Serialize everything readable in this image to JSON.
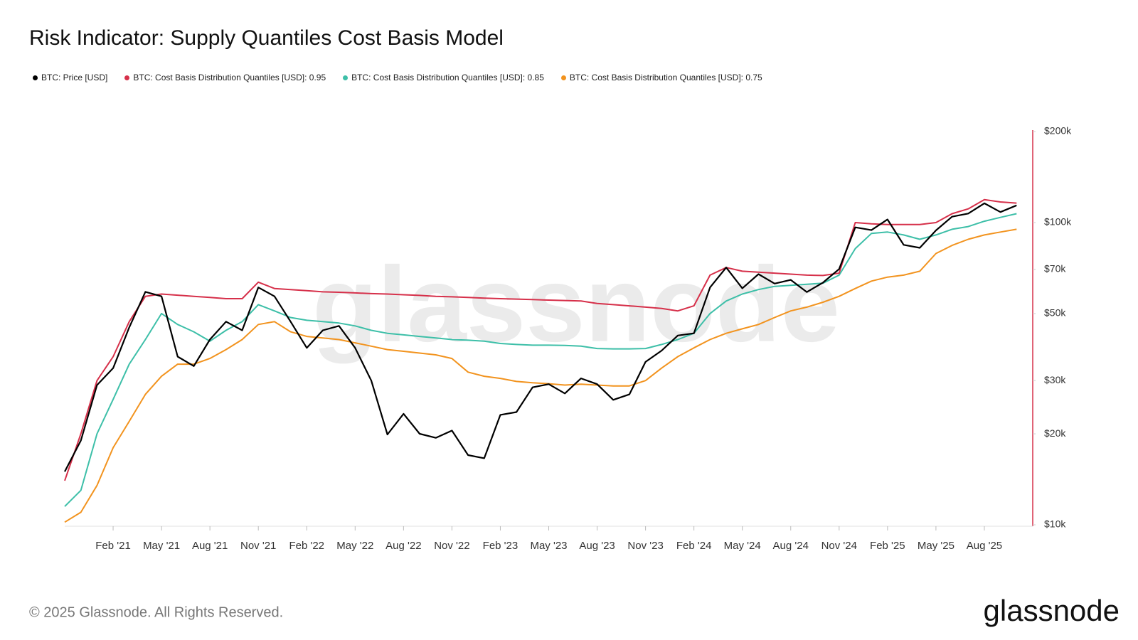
{
  "chart_data": {
    "type": "line",
    "title": "Risk Indicator: Supply Quantiles Cost Basis Model",
    "yscale": "log",
    "grid": false,
    "legend_position": "top-left",
    "categories": [
      null,
      null,
      null,
      "Feb '21",
      null,
      null,
      "May '21",
      null,
      null,
      "Aug '21",
      null,
      null,
      "Nov '21",
      null,
      null,
      "Feb '22",
      null,
      null,
      "May '22",
      null,
      null,
      "Aug '22",
      null,
      null,
      "Nov '22",
      null,
      null,
      "Feb '23",
      null,
      null,
      "May '23",
      null,
      null,
      "Aug '23",
      null,
      null,
      "Nov '23",
      null,
      null,
      "Feb '24",
      null,
      null,
      "May '24",
      null,
      null,
      "Aug '24",
      null,
      null,
      "Nov '24",
      null,
      null,
      "Feb '25",
      null,
      null,
      "May '25",
      null,
      null,
      "Aug '25",
      null,
      null
    ],
    "ylim": [
      10000,
      200000
    ],
    "yticks": [
      {
        "value": 10000,
        "label": "$10k"
      },
      {
        "value": 20000,
        "label": "$20k"
      },
      {
        "value": 30000,
        "label": "$30k"
      },
      {
        "value": 50000,
        "label": "$50k"
      },
      {
        "value": 70000,
        "label": "$70k"
      },
      {
        "value": 100000,
        "label": "$100k"
      },
      {
        "value": 200000,
        "label": "$200k"
      }
    ],
    "series": [
      {
        "name": "BTC: Price [USD]",
        "color": "#000000",
        "values": [
          15000,
          19000,
          29000,
          33000,
          45000,
          59000,
          57000,
          36000,
          33500,
          41000,
          47000,
          44000,
          61000,
          57000,
          47000,
          38500,
          44000,
          45500,
          38500,
          30000,
          19900,
          23300,
          20000,
          19400,
          20500,
          17000,
          16600,
          23100,
          23600,
          28500,
          29200,
          27200,
          30500,
          29200,
          25900,
          27000,
          34600,
          37700,
          42300,
          43000,
          61000,
          71000,
          60600,
          67500,
          62800,
          64600,
          58900,
          63300,
          70200,
          96400,
          94400,
          102400,
          84400,
          82500,
          94200,
          104600,
          107100,
          115800,
          108300,
          114000
        ]
      },
      {
        "name": "BTC: Cost Basis Distribution Quantiles [USD]: 0.95",
        "color": "#d6304a",
        "values": [
          14000,
          20000,
          30000,
          36000,
          47000,
          57000,
          58000,
          57500,
          57000,
          56500,
          56000,
          56000,
          63500,
          60500,
          60000,
          59500,
          59000,
          58800,
          58500,
          58200,
          58000,
          57700,
          57400,
          57000,
          56800,
          56500,
          56200,
          56000,
          55800,
          55600,
          55400,
          55200,
          55000,
          54000,
          53500,
          53000,
          52500,
          52000,
          51000,
          53000,
          67000,
          71000,
          69000,
          68500,
          68000,
          67500,
          67000,
          66800,
          68000,
          100000,
          99000,
          98500,
          98500,
          98500,
          100000,
          107000,
          111000,
          119000,
          117000,
          116000
        ]
      },
      {
        "name": "BTC: Cost Basis Distribution Quantiles [USD]: 0.85",
        "color": "#3dbfa8",
        "values": [
          11500,
          13000,
          20000,
          26000,
          34000,
          41000,
          50000,
          46000,
          43500,
          40500,
          44000,
          47000,
          53500,
          51000,
          48500,
          47500,
          47000,
          46500,
          45500,
          44000,
          43000,
          42500,
          42000,
          41500,
          41000,
          40800,
          40500,
          39800,
          39500,
          39300,
          39300,
          39200,
          39000,
          38300,
          38200,
          38200,
          38300,
          39500,
          41000,
          43000,
          50000,
          55000,
          58000,
          60000,
          61500,
          62000,
          62500,
          63000,
          67000,
          82000,
          92000,
          93000,
          91000,
          88000,
          91000,
          95000,
          97000,
          101000,
          104000,
          107000
        ]
      },
      {
        "name": "BTC: Cost Basis Distribution Quantiles [USD]: 0.75",
        "color": "#f2931e",
        "values": [
          10200,
          11000,
          13500,
          18000,
          22000,
          27000,
          31000,
          34000,
          34000,
          35500,
          38000,
          41000,
          46000,
          47000,
          43500,
          42000,
          41500,
          41000,
          40000,
          39000,
          38000,
          37500,
          37000,
          36500,
          35500,
          32000,
          31000,
          30500,
          29800,
          29500,
          29300,
          29000,
          29200,
          29000,
          28800,
          28800,
          30000,
          33000,
          36000,
          38500,
          41000,
          43000,
          44500,
          46000,
          48500,
          51000,
          52500,
          54500,
          57000,
          60500,
          64000,
          66000,
          67000,
          69000,
          79000,
          84000,
          88000,
          91000,
          93000,
          95000
        ]
      }
    ]
  },
  "footer": {
    "copyright": "© 2025 Glassnode. All Rights Reserved.",
    "logo": "glassnode",
    "watermark": "glassnode"
  }
}
